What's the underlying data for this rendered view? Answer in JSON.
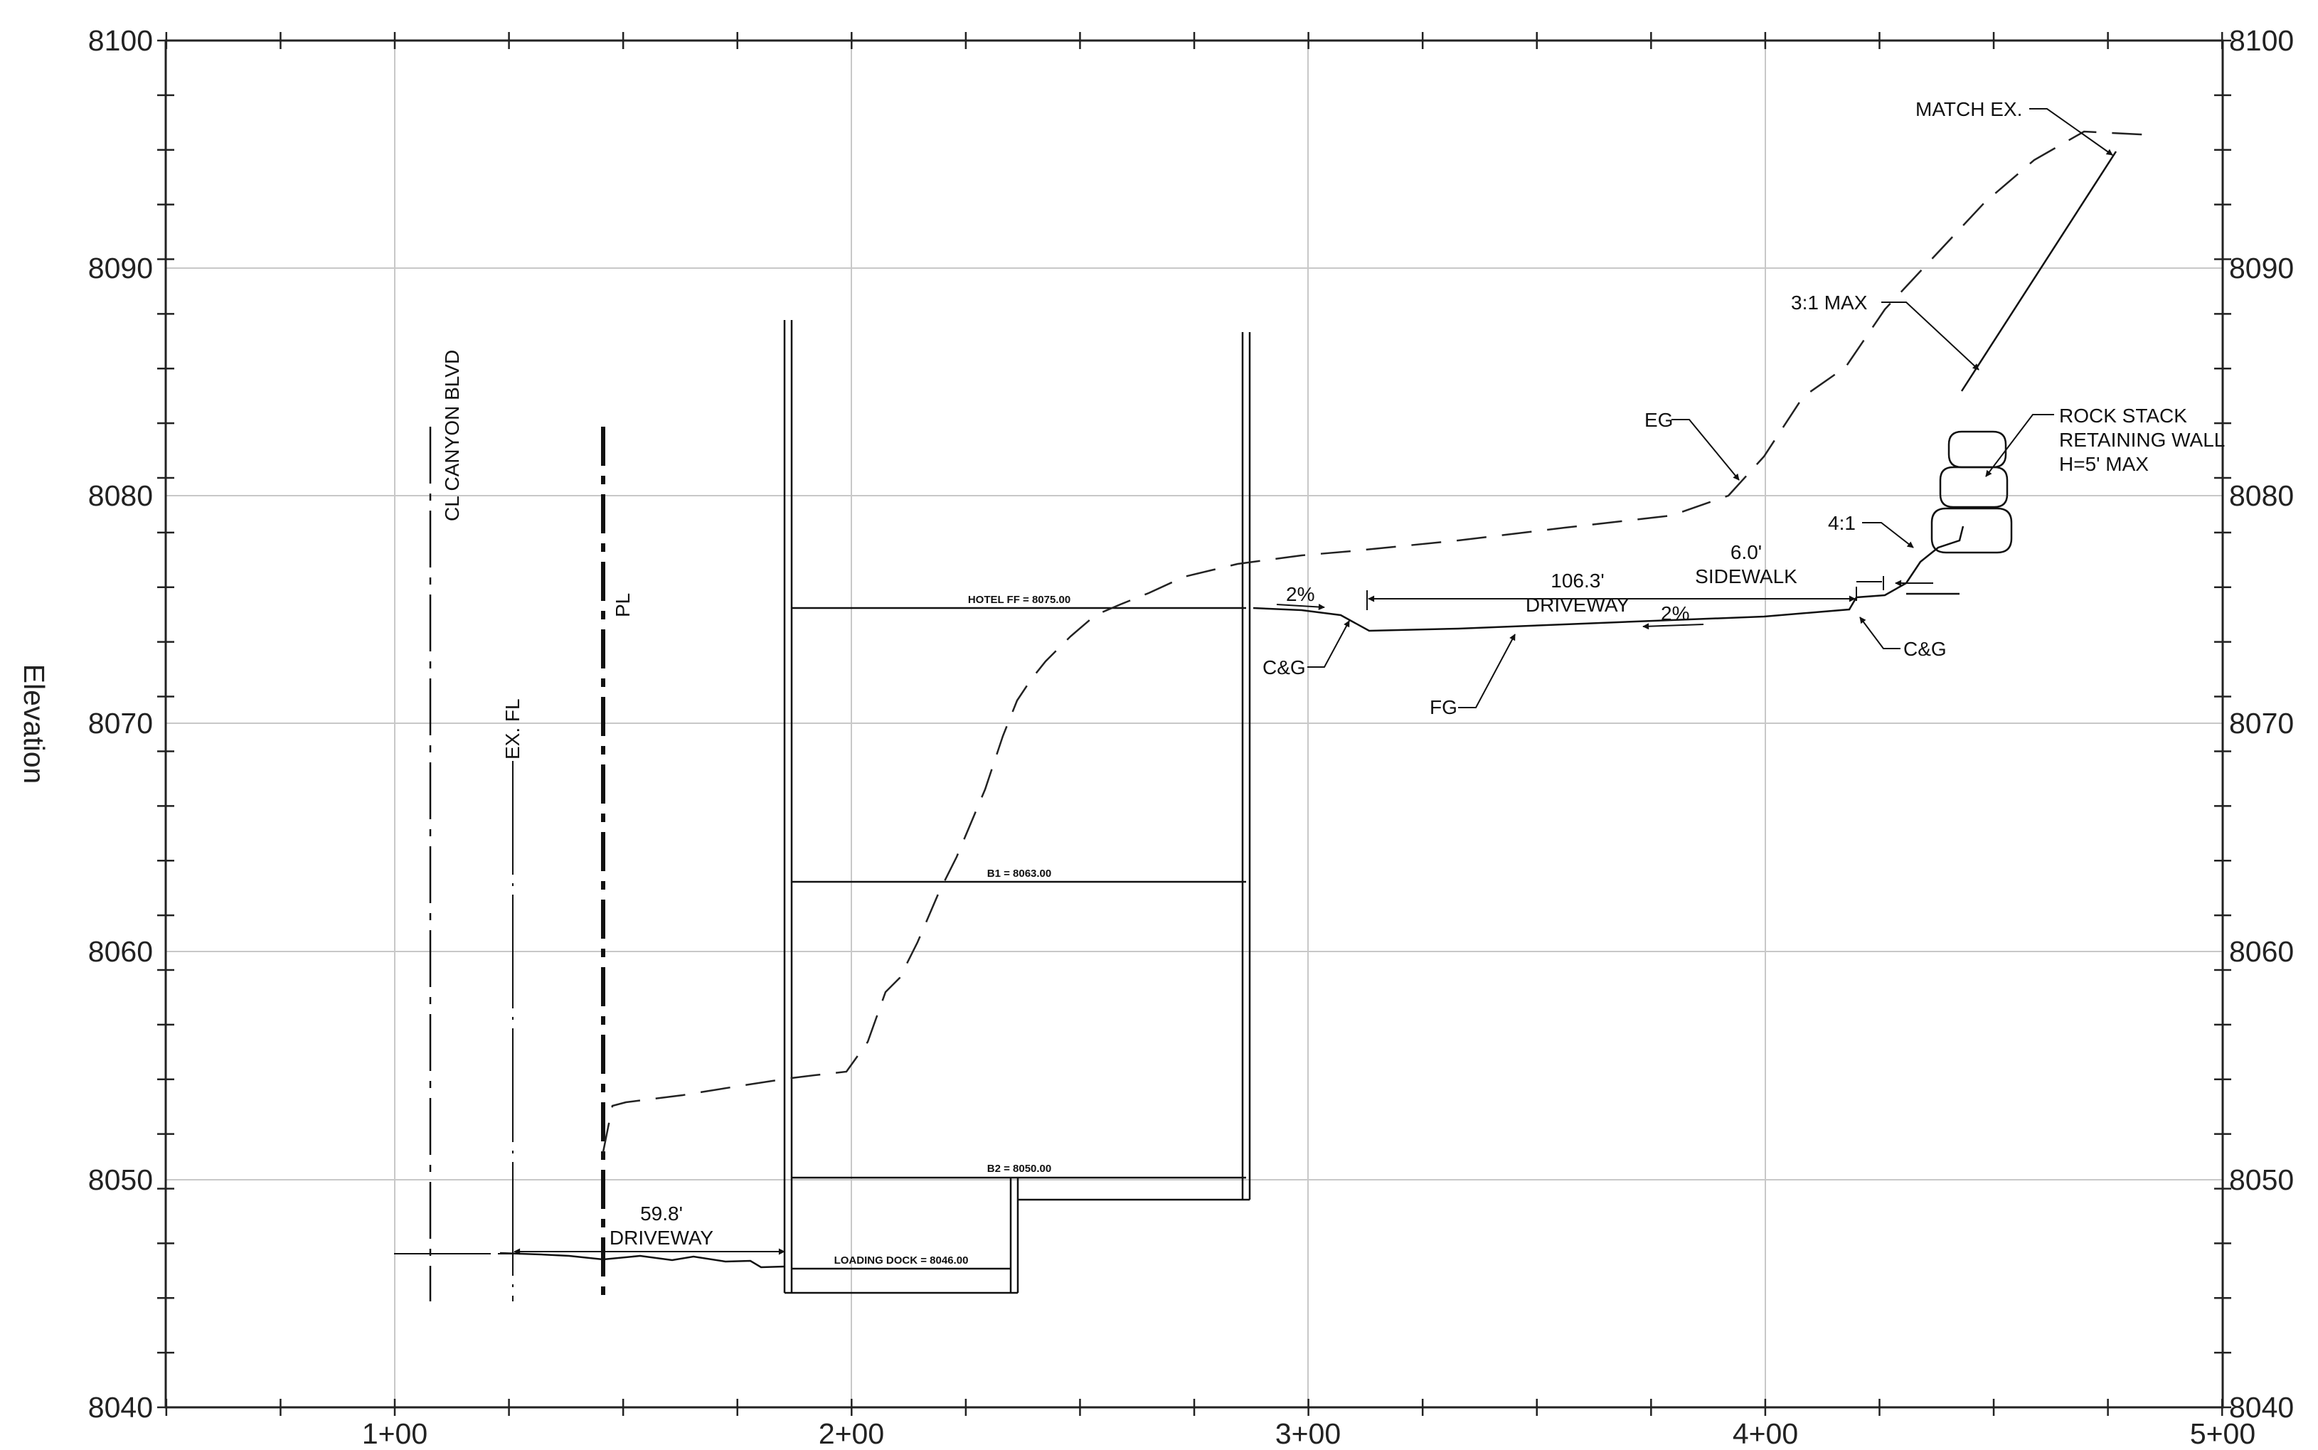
{
  "axes": {
    "ylabel": "Elevation",
    "y_ticks": [
      "8040",
      "8050",
      "8060",
      "8070",
      "8080",
      "8090",
      "8100"
    ],
    "x_ticks": [
      "1+00",
      "2+00",
      "3+00",
      "4+00",
      "5+00"
    ]
  },
  "levels": {
    "hotel_ff": "HOTEL FF = 8075.00",
    "b1": "B1 = 8063.00",
    "b2": "B2 = 8050.00",
    "loading_dock": "LOADING DOCK = 8046.00"
  },
  "labels": {
    "cl_canyon": "CL CANYON BLVD",
    "pl": "PL",
    "ex_fl": "EX. FL",
    "dim1_value": "59.8'",
    "dim1_text": "DRIVEWAY",
    "dim2_value": "106.3'",
    "dim2_text": "DRIVEWAY",
    "sidewalk_value": "6.0'",
    "sidewalk_text": "SIDEWALK",
    "slope_left": "2%",
    "slope_right": "2%",
    "cg_left": "C&G",
    "cg_right": "C&G",
    "fg": "FG",
    "eg": "EG",
    "slope_41": "4:1",
    "slope_31": "3:1 MAX",
    "match_ex": "MATCH EX.",
    "rock_1": "ROCK STACK",
    "rock_2": "RETAINING WALL",
    "rock_3": "H=5' MAX"
  }
}
